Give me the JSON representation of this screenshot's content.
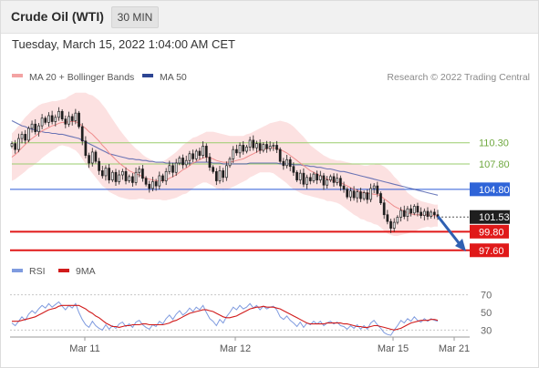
{
  "header": {
    "title": "Crude Oil (WTI)",
    "timeframe": "30 MIN",
    "datetime": "Tuesday, March 15, 2022 1:04:00 AM CET"
  },
  "legend": {
    "ma20": "MA 20 + Bollinger Bands",
    "ma50": "MA 50",
    "credit": "Research © 2022 Trading Central",
    "rsi": "RSI",
    "rsi_ma": "9MA"
  },
  "colors": {
    "bollinger": "#f9c9c9",
    "ma20": "#ef8d8d",
    "ma50": "#3b4fa6",
    "resistance": "#9acd6e",
    "pivot": "#2a5ad6",
    "support": "#e01919",
    "last": "#1f1f1f",
    "arrow": "#2f60b2",
    "candle": "#1f1f1f"
  },
  "chart_data": [
    {
      "type": "candlestick",
      "title": "Crude Oil (WTI)",
      "timeframe": "30 MIN",
      "x_labels": [
        "Mar 11",
        "Mar 12",
        "Mar 15",
        "Mar 21"
      ],
      "ylim": [
        96.5,
        115
      ],
      "levels": [
        {
          "value": 110.3,
          "label": "110.30",
          "kind": "resistance"
        },
        {
          "value": 107.8,
          "label": "107.80",
          "kind": "resistance"
        },
        {
          "value": 104.8,
          "label": "104.80",
          "kind": "pivot"
        },
        {
          "value": 101.53,
          "label": "101.53",
          "kind": "last"
        },
        {
          "value": 99.8,
          "label": "99.80",
          "kind": "support"
        },
        {
          "value": 97.6,
          "label": "97.60",
          "kind": "support"
        }
      ],
      "forecast_arrow": {
        "from": 101.5,
        "to": 97.9
      },
      "closes": [
        110.2,
        109.5,
        110.8,
        111.3,
        110.6,
        112.0,
        112.5,
        111.6,
        112.3,
        113.2,
        112.7,
        113.5,
        112.8,
        113.3,
        114.0,
        113.1,
        112.5,
        113.4,
        112.9,
        113.8,
        112.2,
        110.5,
        108.8,
        107.9,
        109.2,
        108.1,
        107.0,
        106.4,
        107.3,
        105.9,
        106.8,
        105.7,
        106.5,
        106.9,
        105.8,
        106.3,
        105.6,
        106.8,
        107.2,
        106.1,
        105.4,
        104.9,
        105.7,
        105.2,
        106.4,
        105.8,
        106.9,
        107.6,
        106.8,
        107.9,
        108.5,
        107.7,
        108.2,
        109.0,
        108.4,
        109.3,
        108.8,
        109.9,
        108.6,
        107.4,
        106.9,
        105.8,
        107.0,
        106.2,
        107.6,
        108.4,
        109.5,
        109.1,
        110.0,
        109.3,
        109.8,
        110.6,
        109.7,
        110.2,
        109.4,
        110.1,
        109.6,
        109.9,
        110.0,
        109.5,
        108.1,
        107.6,
        108.3,
        107.5,
        106.8,
        105.9,
        106.7,
        105.4,
        106.2,
        105.8,
        106.6,
        105.9,
        106.4,
        105.3,
        105.9,
        106.3,
        105.6,
        106.1,
        105.2,
        104.8,
        103.9,
        104.6,
        103.8,
        104.5,
        103.7,
        104.4,
        103.6,
        104.9,
        105.2,
        104.3,
        103.2,
        101.8,
        101.0,
        100.2,
        100.9,
        101.5,
        102.3,
        101.6,
        102.5,
        102.0,
        102.8,
        102.1,
        101.7,
        102.2,
        101.6,
        102.1,
        101.8,
        101.53
      ],
      "ma20": [
        108.6,
        108.9,
        109.3,
        109.7,
        110.1,
        110.5,
        110.8,
        111.1,
        111.4,
        111.7,
        111.9,
        112.1,
        112.3,
        112.4,
        112.6,
        112.7,
        112.7,
        112.8,
        112.8,
        112.8,
        112.6,
        112.3,
        112.0,
        111.6,
        111.3,
        110.9,
        110.5,
        110.0,
        109.6,
        109.1,
        108.7,
        108.3,
        107.9,
        107.6,
        107.3,
        107.0,
        106.8,
        106.6,
        106.5,
        106.3,
        106.1,
        106.0,
        105.9,
        105.8,
        105.8,
        105.8,
        105.9,
        106.1,
        106.3,
        106.5,
        106.8,
        107.1,
        107.3,
        107.6,
        107.9,
        108.1,
        108.3,
        108.5,
        108.6,
        108.5,
        108.4,
        108.2,
        108.1,
        108.0,
        108.0,
        108.0,
        108.1,
        108.2,
        108.3,
        108.4,
        108.6,
        108.8,
        109.0,
        109.2,
        109.4,
        109.5,
        109.6,
        109.7,
        109.7,
        109.6,
        109.5,
        109.3,
        109.1,
        108.8,
        108.5,
        108.2,
        107.9,
        107.6,
        107.3,
        107.0,
        106.8,
        106.6,
        106.4,
        106.2,
        106.0,
        105.9,
        105.8,
        105.7,
        105.6,
        105.4,
        105.2,
        105.0,
        104.8,
        104.7,
        104.5,
        104.4,
        104.3,
        104.3,
        104.2,
        104.2,
        104.0,
        103.7,
        103.4,
        103.1,
        102.8,
        102.6,
        102.4,
        102.2,
        102.0,
        101.9,
        101.8,
        101.8,
        101.8,
        101.8,
        101.8,
        101.7,
        101.7,
        101.7
      ],
      "ma50": [
        112.9,
        112.7,
        112.5,
        112.3,
        112.2,
        112.0,
        111.9,
        111.8,
        111.7,
        111.6,
        111.5,
        111.5,
        111.4,
        111.4,
        111.3,
        111.3,
        111.2,
        111.1,
        111.0,
        110.9,
        110.8,
        110.6,
        110.4,
        110.2,
        110.0,
        109.8,
        109.6,
        109.4,
        109.2,
        109.0,
        108.9,
        108.8,
        108.7,
        108.6,
        108.5,
        108.4,
        108.4,
        108.3,
        108.3,
        108.2,
        108.2,
        108.1,
        108.1,
        108.0,
        108.0,
        108.0,
        107.9,
        107.9,
        107.9,
        107.9,
        107.9,
        107.9,
        107.9,
        107.9,
        107.9,
        108.0,
        108.0,
        108.0,
        108.0,
        108.0,
        107.9,
        107.9,
        107.9,
        107.8,
        107.8,
        107.8,
        107.8,
        107.8,
        107.8,
        107.8,
        107.8,
        107.9,
        107.9,
        107.9,
        107.9,
        107.9,
        107.9,
        107.9,
        107.9,
        107.9,
        107.8,
        107.8,
        107.8,
        107.8,
        107.7,
        107.7,
        107.7,
        107.6,
        107.6,
        107.5,
        107.5,
        107.4,
        107.4,
        107.3,
        107.2,
        107.2,
        107.1,
        107.0,
        106.9,
        106.9,
        106.8,
        106.7,
        106.6,
        106.5,
        106.4,
        106.3,
        106.2,
        106.1,
        106.0,
        105.9,
        105.8,
        105.7,
        105.6,
        105.5,
        105.4,
        105.3,
        105.2,
        105.1,
        105.0,
        104.9,
        104.8,
        104.7,
        104.6,
        104.5,
        104.4,
        104.3,
        104.2,
        104.1
      ],
      "bollinger_width": [
        2.8,
        2.9,
        3.0,
        3.1,
        3.2,
        3.2,
        3.3,
        3.3,
        3.3,
        3.2,
        3.1,
        3.0,
        2.9,
        2.8,
        2.7,
        2.7,
        2.8,
        3.0,
        3.2,
        3.4,
        3.6,
        3.9,
        4.2,
        4.4,
        4.6,
        4.7,
        4.8,
        4.8,
        4.7,
        4.6,
        4.4,
        4.2,
        4.0,
        3.8,
        3.6,
        3.4,
        3.2,
        3.0,
        2.8,
        2.6,
        2.5,
        2.4,
        2.3,
        2.2,
        2.2,
        2.3,
        2.4,
        2.5,
        2.6,
        2.7,
        2.8,
        2.9,
        3.0,
        3.0,
        3.0,
        2.9,
        2.9,
        2.9,
        3.0,
        3.1,
        3.2,
        3.3,
        3.3,
        3.3,
        3.2,
        3.1,
        3.0,
        2.9,
        2.8,
        2.7,
        2.7,
        2.6,
        2.6,
        2.6,
        2.6,
        2.7,
        2.8,
        2.9,
        3.0,
        3.2,
        3.4,
        3.5,
        3.6,
        3.7,
        3.7,
        3.6,
        3.5,
        3.4,
        3.2,
        3.0,
        2.9,
        2.8,
        2.7,
        2.6,
        2.6,
        2.5,
        2.5,
        2.5,
        2.6,
        2.7,
        2.8,
        2.9,
        3.0,
        3.1,
        3.2,
        3.2,
        3.3,
        3.4,
        3.5,
        3.6,
        3.7,
        3.8,
        3.8,
        3.7,
        3.5,
        3.3,
        3.0,
        2.7,
        2.4,
        2.2,
        2.0,
        1.8,
        1.6,
        1.5,
        1.4,
        1.4,
        1.3,
        1.3
      ],
      "series": [
        {
          "name": "MA 20 + Bollinger Bands"
        },
        {
          "name": "MA 50"
        }
      ]
    },
    {
      "type": "line",
      "title": "RSI",
      "ylim": [
        20,
        80
      ],
      "y_ticks": [
        70,
        50,
        30
      ],
      "guide_levels": [
        70,
        30
      ],
      "rsi": [
        38,
        35,
        40,
        45,
        41,
        48,
        52,
        49,
        54,
        58,
        55,
        60,
        56,
        59,
        62,
        57,
        53,
        58,
        55,
        60,
        50,
        42,
        36,
        33,
        40,
        35,
        32,
        30,
        36,
        31,
        35,
        32,
        37,
        39,
        34,
        37,
        33,
        39,
        41,
        36,
        33,
        31,
        36,
        34,
        40,
        37,
        43,
        47,
        42,
        48,
        52,
        47,
        50,
        55,
        51,
        56,
        53,
        58,
        50,
        43,
        40,
        35,
        42,
        38,
        45,
        50,
        56,
        53,
        58,
        54,
        56,
        60,
        55,
        58,
        53,
        57,
        54,
        56,
        57,
        53,
        45,
        42,
        46,
        41,
        38,
        34,
        39,
        33,
        38,
        36,
        40,
        37,
        40,
        35,
        38,
        40,
        37,
        39,
        35,
        34,
        31,
        35,
        32,
        36,
        31,
        35,
        31,
        38,
        41,
        36,
        32,
        27,
        25,
        24,
        30,
        35,
        41,
        38,
        43,
        40,
        45,
        41,
        39,
        43,
        40,
        43,
        41,
        40
      ],
      "ma9": [
        40,
        40,
        40,
        41,
        42,
        43,
        44,
        45,
        47,
        49,
        51,
        53,
        54,
        55,
        57,
        58,
        58,
        58,
        58,
        58,
        58,
        56,
        54,
        51,
        49,
        46,
        44,
        41,
        38,
        36,
        34,
        34,
        33,
        34,
        35,
        35,
        36,
        36,
        36,
        37,
        37,
        36,
        36,
        36,
        36,
        36,
        37,
        38,
        40,
        41,
        43,
        45,
        47,
        49,
        50,
        51,
        52,
        53,
        53,
        52,
        51,
        49,
        47,
        45,
        44,
        44,
        45,
        46,
        48,
        50,
        52,
        54,
        55,
        56,
        56,
        57,
        56,
        56,
        56,
        55,
        54,
        52,
        50,
        48,
        46,
        44,
        42,
        40,
        38,
        37,
        37,
        37,
        37,
        37,
        38,
        38,
        38,
        38,
        38,
        37,
        37,
        36,
        35,
        34,
        34,
        33,
        33,
        34,
        35,
        35,
        34,
        33,
        32,
        31,
        30,
        31,
        32,
        34,
        36,
        38,
        39,
        40,
        41,
        41,
        41,
        42,
        42,
        41
      ],
      "series": [
        {
          "name": "RSI"
        },
        {
          "name": "9MA"
        }
      ]
    }
  ]
}
